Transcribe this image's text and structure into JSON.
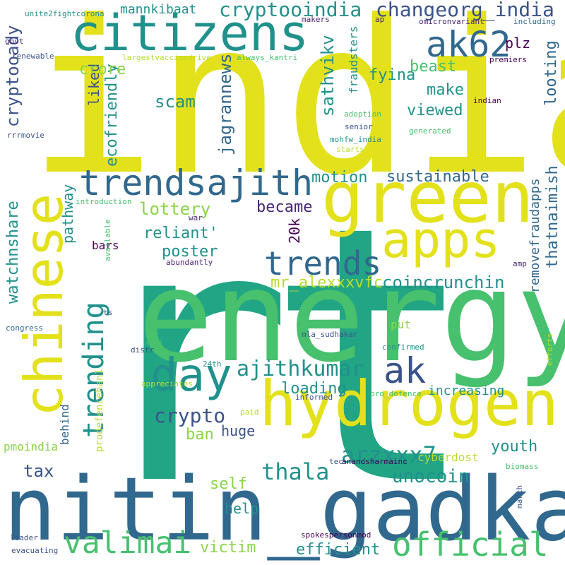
{
  "palette": {
    "yellow": "#e3e11b",
    "yellow_light": "#b7dd2a",
    "light_green": "#8bd548",
    "green": "#47c16e",
    "teal": "#21a585",
    "teal_blue": "#21918c",
    "blue": "#31688e",
    "navy": "#3b528b",
    "purple": "#482475",
    "dark_purple": "#440154"
  },
  "words": [
    {
      "text": "india",
      "color": "#e3e11b"
    },
    {
      "text": "rt",
      "color": "#21a585"
    },
    {
      "text": "energy",
      "color": "#47c16e"
    },
    {
      "text": "nitin_gadkari",
      "color": "#31688e"
    },
    {
      "text": "green",
      "color": "#e3e11b"
    },
    {
      "text": "hydrogen",
      "color": "#e3e11b"
    },
    {
      "text": "chinese",
      "color": "#e3e11b"
    },
    {
      "text": "citizens",
      "color": "#21918c"
    },
    {
      "text": "apps",
      "color": "#e3e11b"
    },
    {
      "text": "official",
      "color": "#47c16e"
    },
    {
      "text": "trendsajith",
      "color": "#31688e"
    },
    {
      "text": "day",
      "color": "#21918c"
    },
    {
      "text": "valimai",
      "color": "#47c16e"
    },
    {
      "text": "trends",
      "color": "#31688e"
    },
    {
      "text": "ak62",
      "color": "#31688e"
    },
    {
      "text": "trending",
      "color": "#21918c"
    },
    {
      "text": "ak",
      "color": "#3b528b"
    },
    {
      "text": "ajithkumar",
      "color": "#21918c"
    },
    {
      "text": "changeorg_india",
      "color": "#3b528b"
    },
    {
      "text": "cryptooindia",
      "color": "#21918c"
    },
    {
      "text": "thala",
      "color": "#21918c"
    },
    {
      "text": "arzxxx7",
      "color": "#21918c"
    },
    {
      "text": "crypto",
      "color": "#3b528b"
    },
    {
      "text": "cryptooady",
      "color": "#3b528b"
    },
    {
      "text": "sustainable",
      "color": "#31688e"
    },
    {
      "text": "coincrunchin",
      "color": "#21918c"
    },
    {
      "text": "mr_alexxxvfc",
      "color": "#b7dd2a"
    },
    {
      "text": "lottery",
      "color": "#8bd548"
    },
    {
      "text": "motion",
      "color": "#21918c"
    },
    {
      "text": "unocoin",
      "color": "#21918c"
    },
    {
      "text": "youth",
      "color": "#21918c"
    },
    {
      "text": "ecofriendly",
      "color": "#21918c"
    },
    {
      "text": "sathvikv",
      "color": "#21918c"
    },
    {
      "text": "jagrannews",
      "color": "#31688e"
    },
    {
      "text": "thatnaimish",
      "color": "#31688e"
    },
    {
      "text": "removefraudapps",
      "color": "#31688e"
    },
    {
      "text": "reliant'",
      "color": "#21918c"
    },
    {
      "text": "poster",
      "color": "#21918c"
    },
    {
      "text": "became",
      "color": "#482475"
    },
    {
      "text": "scam",
      "color": "#21918c"
    },
    {
      "text": "viewed",
      "color": "#21918c"
    },
    {
      "text": "make",
      "color": "#21918c"
    },
    {
      "text": "beast",
      "color": "#47c16e"
    },
    {
      "text": "fyina",
      "color": "#21918c"
    },
    {
      "text": "plz",
      "color": "#440154"
    },
    {
      "text": "looting",
      "color": "#31688e"
    },
    {
      "text": "liked",
      "color": "#3b528b"
    },
    {
      "text": "crore",
      "color": "#8bd548"
    },
    {
      "text": "mannkibaat",
      "color": "#21918c"
    },
    {
      "text": "watchnshare",
      "color": "#21918c"
    },
    {
      "text": "pathway",
      "color": "#21918c"
    },
    {
      "text": "bars",
      "color": "#440154"
    },
    {
      "text": "20k",
      "color": "#440154"
    },
    {
      "text": "loading",
      "color": "#21918c"
    },
    {
      "text": "huge",
      "color": "#3b528b"
    },
    {
      "text": "ban",
      "color": "#8bd548"
    },
    {
      "text": "tax",
      "color": "#3b528b"
    },
    {
      "text": "self",
      "color": "#8bd548"
    },
    {
      "text": "help",
      "color": "#21918c"
    },
    {
      "text": "victim",
      "color": "#8bd548"
    },
    {
      "text": "efficient",
      "color": "#21918c"
    },
    {
      "text": "increasing",
      "color": "#21918c"
    },
    {
      "text": "cyberdost",
      "color": "#b7dd2a"
    },
    {
      "text": "put",
      "color": "#8bd548"
    },
    {
      "text": "pmoindia",
      "color": "#8bd548"
    },
    {
      "text": "behind",
      "color": "#31688e"
    },
    {
      "text": "prodefencehan1",
      "color": "#b7dd2a"
    },
    {
      "text": "fraudsters",
      "color": "#21918c"
    },
    {
      "text": "unite2fightcorona",
      "color": "#21918c"
    },
    {
      "text": "makers",
      "color": "#482475"
    },
    {
      "text": "govt",
      "color": "#482475"
    },
    {
      "text": "renewable",
      "color": "#3b528b"
    },
    {
      "text": "largestvaccinedrive",
      "color": "#b7dd2a"
    },
    {
      "text": "always_kantri",
      "color": "#47c16e"
    },
    {
      "text": "ap",
      "color": "#482475"
    },
    {
      "text": "omicronvariant",
      "color": "#482475"
    },
    {
      "text": "including",
      "color": "#31688e"
    },
    {
      "text": "premiers",
      "color": "#440154"
    },
    {
      "text": "indian",
      "color": "#440154"
    },
    {
      "text": "adoption",
      "color": "#47c16e"
    },
    {
      "text": "senior",
      "color": "#3b528b"
    },
    {
      "text": "mohfw_india",
      "color": "#21918c"
    },
    {
      "text": "starts",
      "color": "#b7dd2a"
    },
    {
      "text": "generated",
      "color": "#47c16e"
    },
    {
      "text": "rrrmovie",
      "color": "#3b528b"
    },
    {
      "text": "introduction",
      "color": "#47c16e"
    },
    {
      "text": "war",
      "color": "#482475"
    },
    {
      "text": "available",
      "color": "#47c16e"
    },
    {
      "text": "abundantly",
      "color": "#482475"
    },
    {
      "text": "amp",
      "color": "#482475"
    },
    {
      "text": "ts",
      "color": "#3b528b"
    },
    {
      "text": "congress",
      "color": "#31688e"
    },
    {
      "text": "shri",
      "color": "#47c16e"
    },
    {
      "text": "distr",
      "color": "#3b528b"
    },
    {
      "text": "mla_sudhakar",
      "color": "#3b528b"
    },
    {
      "text": "confirmed",
      "color": "#21918c"
    },
    {
      "text": "efforts",
      "color": "#b7dd2a"
    },
    {
      "text": "24th",
      "color": "#21918c"
    },
    {
      "text": "appreciates",
      "color": "#b7dd2a"
    },
    {
      "text": "informed",
      "color": "#3b528b"
    },
    {
      "text": "pro_defence",
      "color": "#47c16e"
    },
    {
      "text": "paid",
      "color": "#b7dd2a"
    },
    {
      "text": "tec",
      "color": "#3b528b"
    },
    {
      "text": "anandsharmainc",
      "color": "#440154"
    },
    {
      "text": "biomass",
      "color": "#47c16e"
    },
    {
      "text": "march",
      "color": "#3b528b"
    },
    {
      "text": "leader",
      "color": "#3b528b"
    },
    {
      "text": "spokespersonmod",
      "color": "#440154"
    },
    {
      "text": "evacuating",
      "color": "#3b528b"
    }
  ]
}
